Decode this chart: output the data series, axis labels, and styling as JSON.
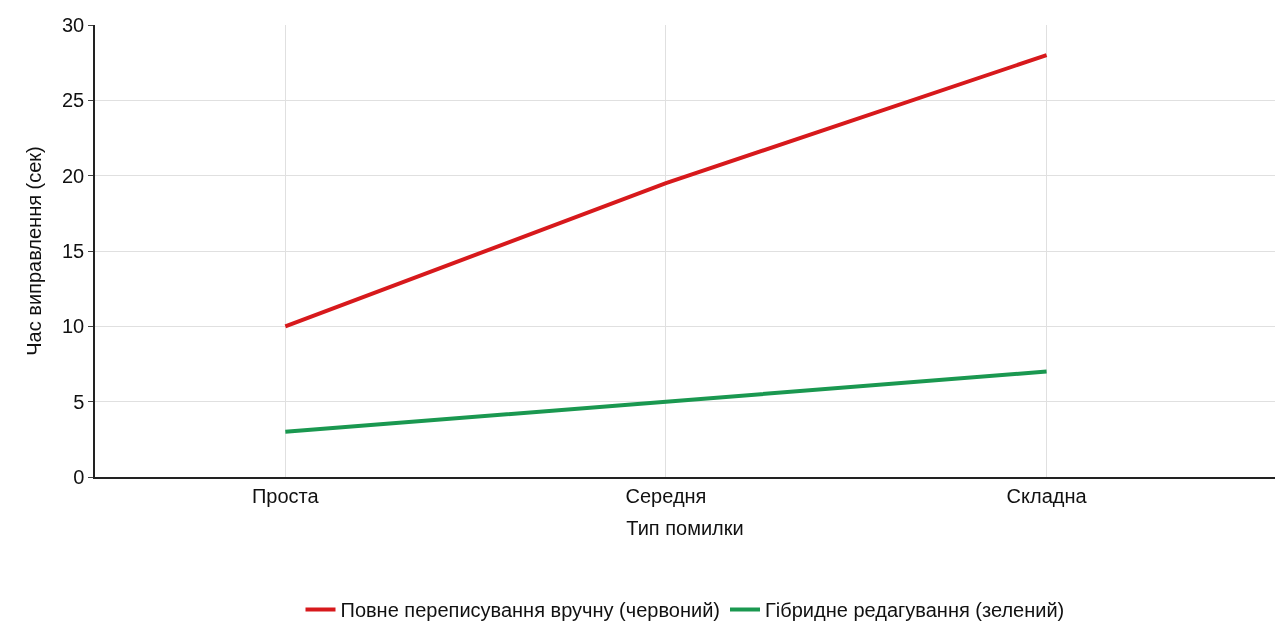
{
  "chart_data": {
    "type": "line",
    "xlabel": "Тип помилки",
    "ylabel": "Час виправлення (сек)",
    "categories": [
      "Проста",
      "Середня",
      "Складна"
    ],
    "series": [
      {
        "name": "Повне переписування вручну (червоний)",
        "color": "#d7191c",
        "values": [
          10,
          19.5,
          28
        ]
      },
      {
        "name": "Гібридне редагування (зелений)",
        "color": "#1a9850",
        "values": [
          3,
          5,
          7
        ]
      }
    ],
    "ylim": [
      0,
      30
    ],
    "yticks": [
      0,
      5,
      10,
      15,
      20,
      25,
      30
    ],
    "grid": true,
    "legend": "bottom",
    "marker": "none",
    "line_style": "solid"
  }
}
